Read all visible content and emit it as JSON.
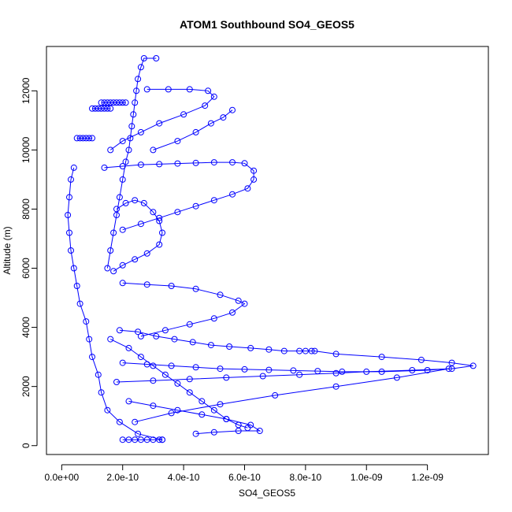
{
  "chart_data": {
    "type": "scatter",
    "title": "ATOM1 Southbound SO4_GEOS5",
    "xlabel": "SO4_GEOS5",
    "ylabel": "Altitude (m)",
    "xlim": [
      -5e-11,
      1.4e-09
    ],
    "ylim": [
      -300,
      13500
    ],
    "x_ticks": [
      {
        "value": 0,
        "label": "0.0e+00"
      },
      {
        "value": 2e-10,
        "label": "2.0e-10"
      },
      {
        "value": 4e-10,
        "label": "4.0e-10"
      },
      {
        "value": 6e-10,
        "label": "6.0e-10"
      },
      {
        "value": 8e-10,
        "label": "8.0e-10"
      },
      {
        "value": 1e-09,
        "label": "1.0e-09"
      },
      {
        "value": 1.2e-09,
        "label": "1.2e-09"
      }
    ],
    "y_ticks": [
      {
        "value": 0,
        "label": "0"
      },
      {
        "value": 2000,
        "label": "2000"
      },
      {
        "value": 4000,
        "label": "4000"
      },
      {
        "value": 6000,
        "label": "6000"
      },
      {
        "value": 8000,
        "label": "8000"
      },
      {
        "value": 10000,
        "label": "10000"
      },
      {
        "value": 12000,
        "label": "12000"
      }
    ],
    "marker": "open-circle",
    "color": "#0000ff",
    "grid": false,
    "series": [
      {
        "x": [
          3.3e-10,
          2.5e-10,
          1.9e-10,
          1.5e-10,
          1.3e-10,
          1.2e-10,
          1e-10,
          9e-11,
          8e-11,
          6e-11,
          5e-11,
          4e-11,
          3e-11,
          2.5e-11,
          2e-11,
          2.5e-11,
          3e-11,
          4e-11
        ],
        "y": [
          200,
          400,
          800,
          1200,
          1800,
          2400,
          3000,
          3600,
          4200,
          4800,
          5400,
          6000,
          6600,
          7200,
          7800,
          8400,
          9000,
          9400
        ]
      },
      {
        "x": [
          1.5e-10,
          1.6e-10,
          1.7e-10,
          1.8e-10,
          1.9e-10,
          2e-10,
          2.1e-10,
          2.2e-10,
          2.25e-10,
          2.3e-10,
          2.35e-10,
          2.4e-10,
          2.45e-10,
          2.5e-10,
          2.6e-10,
          2.7e-10,
          3.1e-10
        ],
        "y": [
          6000,
          6600,
          7200,
          7800,
          8400,
          9000,
          9600,
          10000,
          10400,
          10800,
          11200,
          11600,
          12000,
          12400,
          12800,
          13100,
          13100
        ]
      },
      {
        "x": [
          2.8e-10,
          3.5e-10,
          4.2e-10,
          4.8e-10,
          5e-10,
          4.7e-10,
          4e-10,
          3.2e-10,
          2.6e-10,
          2e-10,
          1.6e-10
        ],
        "y": [
          12050,
          12050,
          12050,
          12000,
          11800,
          11500,
          11200,
          10900,
          10600,
          10300,
          10000
        ]
      },
      {
        "x": [
          3e-10,
          3.8e-10,
          4.4e-10,
          4.9e-10,
          5.3e-10,
          5.6e-10
        ],
        "y": [
          10000,
          10300,
          10600,
          10900,
          11100,
          11350
        ]
      },
      {
        "x": [
          1.4e-10,
          2e-10,
          2.6e-10,
          3.2e-10,
          3.8e-10,
          4.4e-10,
          5e-10,
          5.6e-10,
          6e-10,
          6.3e-10,
          6.3e-10,
          6.1e-10,
          5.6e-10,
          5e-10,
          4.4e-10,
          3.8e-10,
          3.2e-10,
          2.6e-10,
          2e-10
        ],
        "y": [
          9400,
          9450,
          9500,
          9520,
          9540,
          9560,
          9580,
          9580,
          9550,
          9300,
          9000,
          8700,
          8500,
          8300,
          8100,
          7900,
          7700,
          7500,
          7300
        ]
      },
      {
        "x": [
          1.8e-10,
          2.1e-10,
          2.4e-10,
          2.7e-10,
          3e-10,
          3.2e-10,
          3.3e-10,
          3.2e-10,
          2.8e-10,
          2.4e-10,
          2e-10,
          1.7e-10
        ],
        "y": [
          8000,
          8200,
          8300,
          8200,
          7900,
          7600,
          7200,
          6800,
          6500,
          6300,
          6100,
          5900
        ]
      },
      {
        "x": [
          2e-10,
          2.8e-10,
          3.6e-10,
          4.4e-10,
          5.2e-10,
          5.8e-10,
          6e-10,
          5.6e-10,
          5e-10,
          4.2e-10,
          3.4e-10,
          2.6e-10
        ],
        "y": [
          5500,
          5450,
          5400,
          5300,
          5100,
          4900,
          4800,
          4500,
          4300,
          4100,
          3900,
          3700
        ]
      },
      {
        "x": [
          1.9e-10,
          2.5e-10,
          3.1e-10,
          3.7e-10,
          4.3e-10,
          4.9e-10,
          5.5e-10,
          6.2e-10,
          6.8e-10,
          7.3e-10,
          7.8e-10,
          8e-10,
          8.2e-10,
          8.3e-10,
          9e-10,
          1.05e-09,
          1.18e-09,
          1.28e-09,
          1.35e-09,
          1.28e-09,
          1.15e-09,
          1e-09,
          9e-10,
          7.8e-10,
          6.6e-10,
          5.4e-10,
          4.2e-10,
          3e-10,
          1.8e-10
        ],
        "y": [
          3900,
          3850,
          3700,
          3600,
          3500,
          3400,
          3350,
          3300,
          3250,
          3200,
          3200,
          3200,
          3200,
          3200,
          3100,
          3000,
          2900,
          2800,
          2700,
          2600,
          2550,
          2500,
          2450,
          2400,
          2350,
          2300,
          2250,
          2200,
          2150
        ]
      },
      {
        "x": [
          2e-10,
          2.8e-10,
          3.6e-10,
          4.4e-10,
          5.2e-10,
          6e-10,
          6.8e-10,
          7.6e-10,
          8.4e-10,
          9.2e-10,
          1.05e-09,
          1.2e-09,
          1.27e-09,
          1.1e-09,
          9e-10,
          7e-10,
          5.2e-10,
          3.6e-10,
          2.4e-10
        ],
        "y": [
          2800,
          2750,
          2700,
          2650,
          2600,
          2580,
          2560,
          2540,
          2520,
          2500,
          2500,
          2550,
          2600,
          2300,
          2000,
          1700,
          1400,
          1100,
          800
        ]
      },
      {
        "x": [
          2.2e-10,
          3e-10,
          3.8e-10,
          4.6e-10,
          5.4e-10,
          6.2e-10,
          6.5e-10,
          5.8e-10,
          5e-10,
          4.4e-10
        ],
        "y": [
          1500,
          1350,
          1200,
          1050,
          900,
          700,
          500,
          500,
          450,
          400
        ]
      },
      {
        "x": [
          1.6e-10,
          2.2e-10,
          2.6e-10,
          3e-10,
          3.4e-10,
          3.8e-10,
          4.2e-10,
          4.6e-10,
          5e-10,
          5.4e-10,
          5.8e-10,
          6.1e-10
        ],
        "y": [
          3600,
          3300,
          3000,
          2700,
          2400,
          2100,
          1800,
          1500,
          1200,
          900,
          700,
          600
        ]
      },
      {
        "x": [
          1e-10,
          1.1e-10,
          1.2e-10,
          1.3e-10,
          1.4e-10,
          1.5e-10,
          1.6e-10
        ],
        "y": [
          11400,
          11400,
          11400,
          11400,
          11400,
          11400,
          11400
        ]
      },
      {
        "x": [
          1.3e-10,
          1.4e-10,
          1.5e-10,
          1.6e-10,
          1.7e-10,
          1.8e-10,
          1.9e-10,
          2e-10,
          2.1e-10
        ],
        "y": [
          11600,
          11600,
          11600,
          11600,
          11600,
          11600,
          11600,
          11600,
          11600
        ]
      },
      {
        "x": [
          5e-11,
          6e-11,
          7e-11,
          8e-11,
          9e-11,
          1e-10
        ],
        "y": [
          10400,
          10400,
          10400,
          10400,
          10400,
          10400
        ]
      },
      {
        "x": [
          2e-10,
          2.2e-10,
          2.4e-10,
          2.6e-10,
          2.8e-10,
          3e-10,
          3.2e-10,
          3.3e-10
        ],
        "y": [
          200,
          200,
          200,
          200,
          200,
          200,
          200,
          200
        ]
      }
    ]
  }
}
